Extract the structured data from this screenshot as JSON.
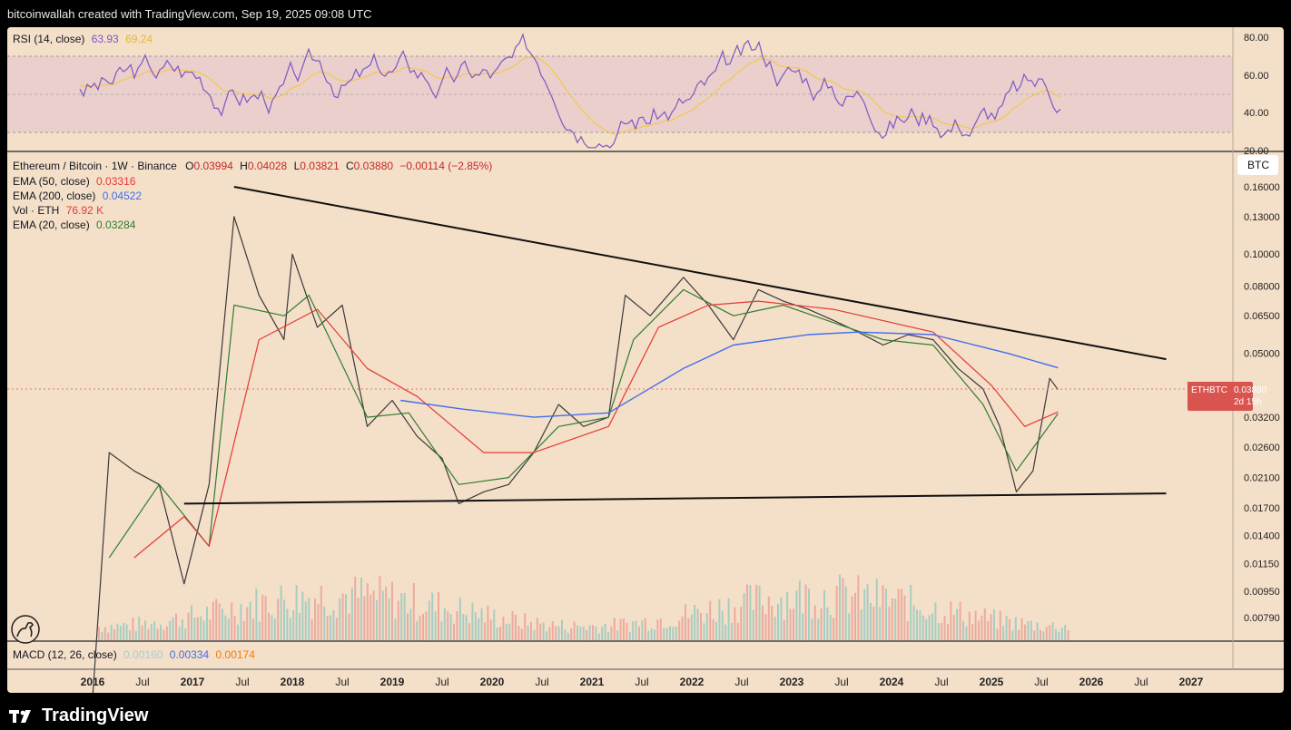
{
  "header": {
    "text": "bitcoinwallah created with TradingView.com, Sep 19, 2025 09:08 UTC"
  },
  "rsi": {
    "label": "RSI (14, close)",
    "value": "63.93",
    "ma_value": "69.24",
    "axis_ticks": [
      "80.00",
      "60.00",
      "40.00",
      "20.00"
    ],
    "colors": {
      "line": "#7e57c2",
      "ma": "#f2c94c",
      "band": "#e8cccc"
    }
  },
  "price": {
    "title": "Ethereum / Bitcoin · 1W · Binance",
    "ohlc": {
      "o_label": "O",
      "o": "0.03994",
      "h_label": "H",
      "h": "0.04028",
      "l_label": "L",
      "l": "0.03821",
      "c_label": "C",
      "c": "0.03880",
      "change": "−0.00114 (−2.85%)"
    },
    "indicators": [
      {
        "label": "EMA (50, close)",
        "value": "0.03316",
        "color": "#e53935"
      },
      {
        "label": "EMA (200, close)",
        "value": "0.04522",
        "color": "#3f6ef0"
      },
      {
        "label": "Vol · ETH",
        "value": "76.92 K",
        "color": "#e53935"
      },
      {
        "label": "EMA (20, close)",
        "value": "0.03284",
        "color": "#2e7d32"
      }
    ],
    "currency": "BTC",
    "axis_ticks": [
      "0.16000",
      "0.13000",
      "0.10000",
      "0.08000",
      "0.06500",
      "0.05000",
      "0.03200",
      "0.02600",
      "0.02100",
      "0.01700",
      "0.01400",
      "0.01150",
      "0.00950",
      "0.00790"
    ],
    "last_price": {
      "symbol": "ETHBTC",
      "value": "0.03880",
      "countdown": "2d 15h",
      "color": "#d9534f"
    }
  },
  "macd": {
    "label": "MACD (12, 26, close)",
    "v1": "0.00160",
    "v2": "0.00334",
    "v3": "0.00174",
    "colors": {
      "v1": "#9ed0d8",
      "v2": "#3f6ef0",
      "v3": "#f57c00"
    }
  },
  "time_axis": [
    "2016",
    "Jul",
    "2017",
    "Jul",
    "2018",
    "Jul",
    "2019",
    "Jul",
    "2020",
    "Jul",
    "2021",
    "Jul",
    "2022",
    "Jul",
    "2023",
    "Jul",
    "2024",
    "Jul",
    "2025",
    "Jul",
    "2026",
    "Jul",
    "2027"
  ],
  "brand": {
    "name": "TradingView"
  },
  "chart_data": {
    "type": "line",
    "yscale": "log",
    "ylim": [
      0.0065,
      0.18
    ],
    "series": [
      {
        "name": "ETHBTC",
        "x": [
          "2016-01",
          "2016-03",
          "2016-06",
          "2016-09",
          "2016-12",
          "2017-03",
          "2017-06",
          "2017-09",
          "2017-12",
          "2018-01",
          "2018-04",
          "2018-07",
          "2018-10",
          "2019-01",
          "2019-04",
          "2019-07",
          "2019-09",
          "2019-12",
          "2020-03",
          "2020-06",
          "2020-09",
          "2020-12",
          "2021-03",
          "2021-05",
          "2021-08",
          "2021-12",
          "2022-03",
          "2022-06",
          "2022-09",
          "2022-12",
          "2023-03",
          "2023-06",
          "2023-09",
          "2023-12",
          "2024-03",
          "2024-06",
          "2024-09",
          "2024-12",
          "2025-02",
          "2025-04",
          "2025-06",
          "2025-08",
          "2025-09"
        ],
        "values": [
          0.0045,
          0.025,
          0.022,
          0.02,
          0.01,
          0.02,
          0.13,
          0.075,
          0.055,
          0.1,
          0.06,
          0.07,
          0.03,
          0.036,
          0.028,
          0.024,
          0.0175,
          0.019,
          0.02,
          0.025,
          0.035,
          0.03,
          0.032,
          0.075,
          0.065,
          0.085,
          0.07,
          0.055,
          0.078,
          0.072,
          0.068,
          0.063,
          0.058,
          0.053,
          0.057,
          0.055,
          0.045,
          0.039,
          0.03,
          0.019,
          0.022,
          0.042,
          0.0388
        ]
      },
      {
        "name": "EMA (20, close)",
        "x": [
          "2016-03",
          "2016-09",
          "2017-03",
          "2017-06",
          "2017-12",
          "2018-03",
          "2018-10",
          "2019-03",
          "2019-09",
          "2020-03",
          "2020-09",
          "2021-03",
          "2021-06",
          "2021-12",
          "2022-06",
          "2022-12",
          "2023-06",
          "2023-12",
          "2024-06",
          "2024-12",
          "2025-04",
          "2025-09"
        ],
        "values": [
          0.012,
          0.02,
          0.013,
          0.07,
          0.065,
          0.075,
          0.032,
          0.033,
          0.02,
          0.021,
          0.03,
          0.032,
          0.055,
          0.078,
          0.065,
          0.07,
          0.062,
          0.055,
          0.053,
          0.035,
          0.022,
          0.0328
        ]
      },
      {
        "name": "EMA (50, close)",
        "x": [
          "2016-06",
          "2016-12",
          "2017-03",
          "2017-09",
          "2018-04",
          "2018-10",
          "2019-04",
          "2019-12",
          "2020-06",
          "2021-03",
          "2021-09",
          "2022-03",
          "2022-09",
          "2023-06",
          "2024-01",
          "2024-06",
          "2025-01",
          "2025-05",
          "2025-09"
        ],
        "values": [
          0.012,
          0.016,
          0.013,
          0.055,
          0.068,
          0.045,
          0.037,
          0.025,
          0.025,
          0.03,
          0.06,
          0.07,
          0.072,
          0.068,
          0.062,
          0.058,
          0.04,
          0.03,
          0.0332
        ]
      },
      {
        "name": "EMA (200, close)",
        "x": [
          "2019-02",
          "2019-09",
          "2020-06",
          "2021-03",
          "2021-12",
          "2022-06",
          "2023-03",
          "2023-09",
          "2024-06",
          "2025-03",
          "2025-09"
        ],
        "values": [
          0.036,
          0.034,
          0.032,
          0.033,
          0.045,
          0.053,
          0.057,
          0.058,
          0.057,
          0.05,
          0.0452
        ]
      }
    ],
    "trendlines": [
      {
        "from": [
          "2017-06",
          0.16
        ],
        "to": [
          "2026-10",
          0.048
        ]
      },
      {
        "from": [
          "2016-12",
          0.0175
        ],
        "to": [
          "2026-10",
          0.0188
        ]
      }
    ]
  }
}
